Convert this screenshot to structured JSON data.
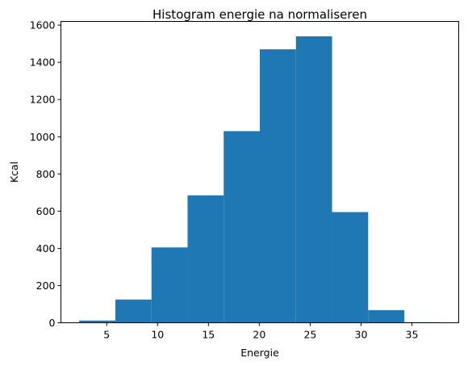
{
  "chart_data": {
    "type": "bar",
    "title": "Histogram energie na normaliseren",
    "xlabel": "Energie",
    "ylabel": "Kcal",
    "bin_edges": [
      2.3,
      5.85,
      9.4,
      12.95,
      16.5,
      20.05,
      23.6,
      27.15,
      30.7,
      34.25,
      37.8
    ],
    "values": [
      12,
      125,
      405,
      685,
      1030,
      1470,
      1540,
      595,
      68,
      3
    ],
    "xlim": [
      0.5,
      39.6
    ],
    "ylim": [
      0,
      1620
    ],
    "xticks": [
      5,
      10,
      15,
      20,
      25,
      30,
      35
    ],
    "yticks": [
      0,
      200,
      400,
      600,
      800,
      1000,
      1200,
      1400,
      1600
    ],
    "bar_color": "#1f77b4",
    "grid": false
  }
}
